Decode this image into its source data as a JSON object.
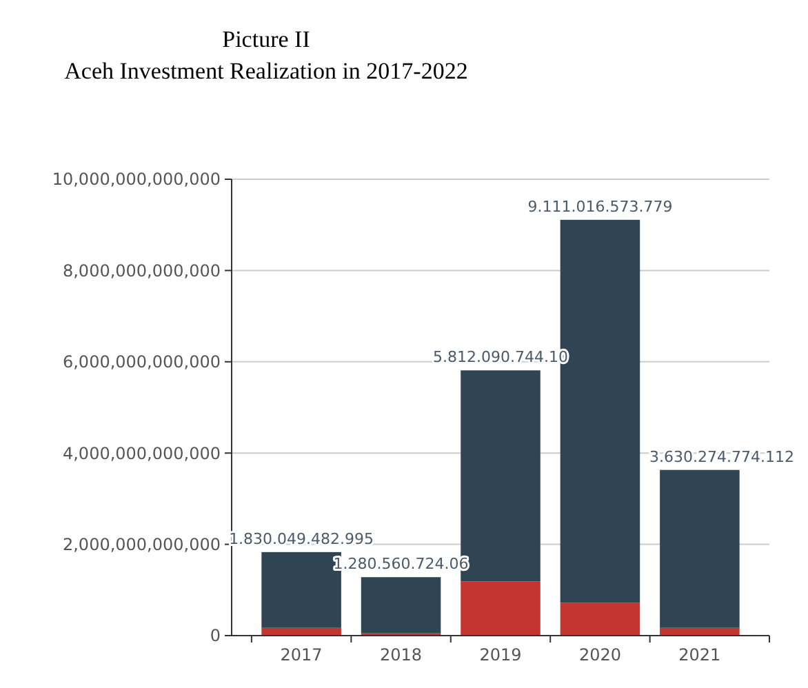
{
  "chart_data": {
    "type": "bar",
    "title": "Picture II",
    "subtitle": "Aceh Investment Realization in 2017-2022",
    "categories": [
      "2017",
      "2018",
      "2019",
      "2020",
      "2021"
    ],
    "stacked": true,
    "series": [
      {
        "color": "#c23531",
        "values": [
          170000000000,
          50000000000,
          1190000000000,
          720000000000,
          170000000000
        ]
      },
      {
        "color": "#2f4554",
        "values": [
          1660049482995,
          1230560724060,
          4622090744100,
          8391016573779,
          3460274774112
        ]
      }
    ],
    "totals": [
      "1.830.049.482.995",
      "1.280.560.724.06",
      "5.812.090.744.10",
      "9.111.016.573.779",
      "3.630.274.774.112"
    ],
    "ylim": [
      0,
      10000000000000
    ],
    "yticks": [
      {
        "value": 0,
        "label": "0"
      },
      {
        "value": 2000000000000,
        "label": "2,000,000,000,000"
      },
      {
        "value": 4000000000000,
        "label": "4,000,000,000,000"
      },
      {
        "value": 6000000000000,
        "label": "6,000,000,000,000"
      },
      {
        "value": 8000000000000,
        "label": "8,000,000,000,000"
      },
      {
        "value": 10000000000000,
        "label": "10,000,000,000,000"
      }
    ],
    "grid": "y"
  }
}
